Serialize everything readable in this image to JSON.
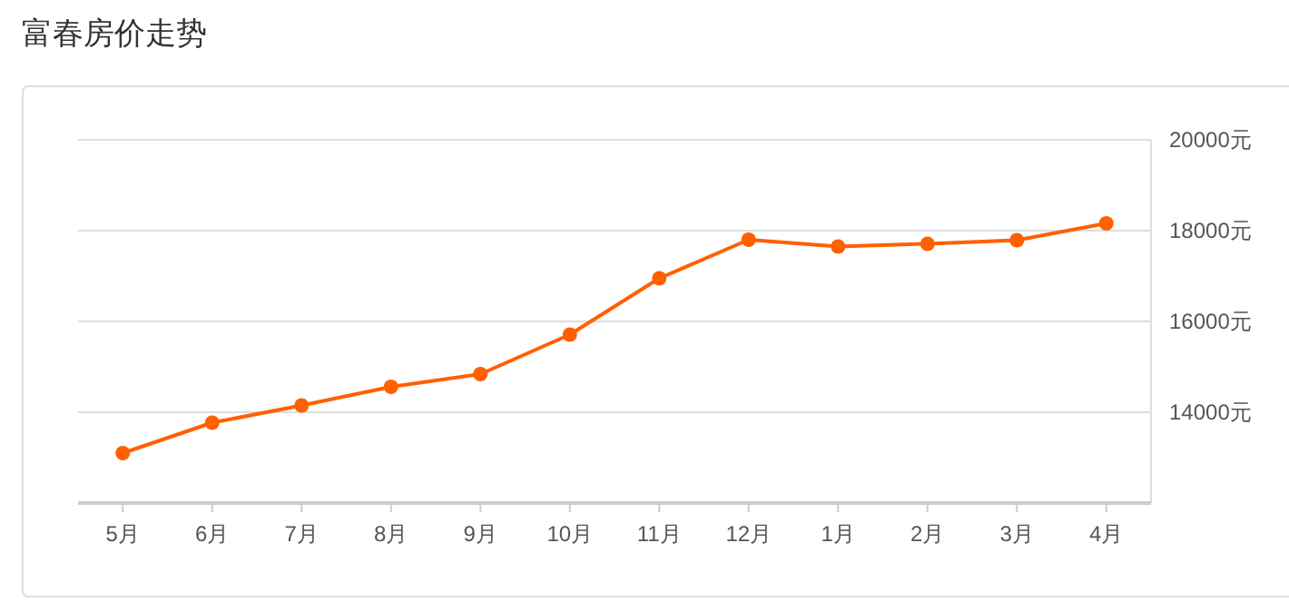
{
  "chart_data": {
    "type": "line",
    "title": "富春房价走势",
    "categories": [
      "5月",
      "6月",
      "7月",
      "8月",
      "9月",
      "10月",
      "11月",
      "12月",
      "1月",
      "2月",
      "3月",
      "4月"
    ],
    "series": [
      {
        "color": "#ff6000",
        "values": [
          13100,
          13770,
          14150,
          14560,
          14840,
          15710,
          16950,
          17800,
          17650,
          17710,
          17790,
          18160
        ]
      }
    ],
    "ylim": [
      12000,
      20000
    ],
    "yticks": [
      {
        "value": 14000,
        "label": "14000元"
      },
      {
        "value": 16000,
        "label": "16000元"
      },
      {
        "value": 18000,
        "label": "18000元"
      },
      {
        "value": 20000,
        "label": "20000元"
      }
    ],
    "grid": "y",
    "marker": "circle",
    "line_style": "solid"
  }
}
